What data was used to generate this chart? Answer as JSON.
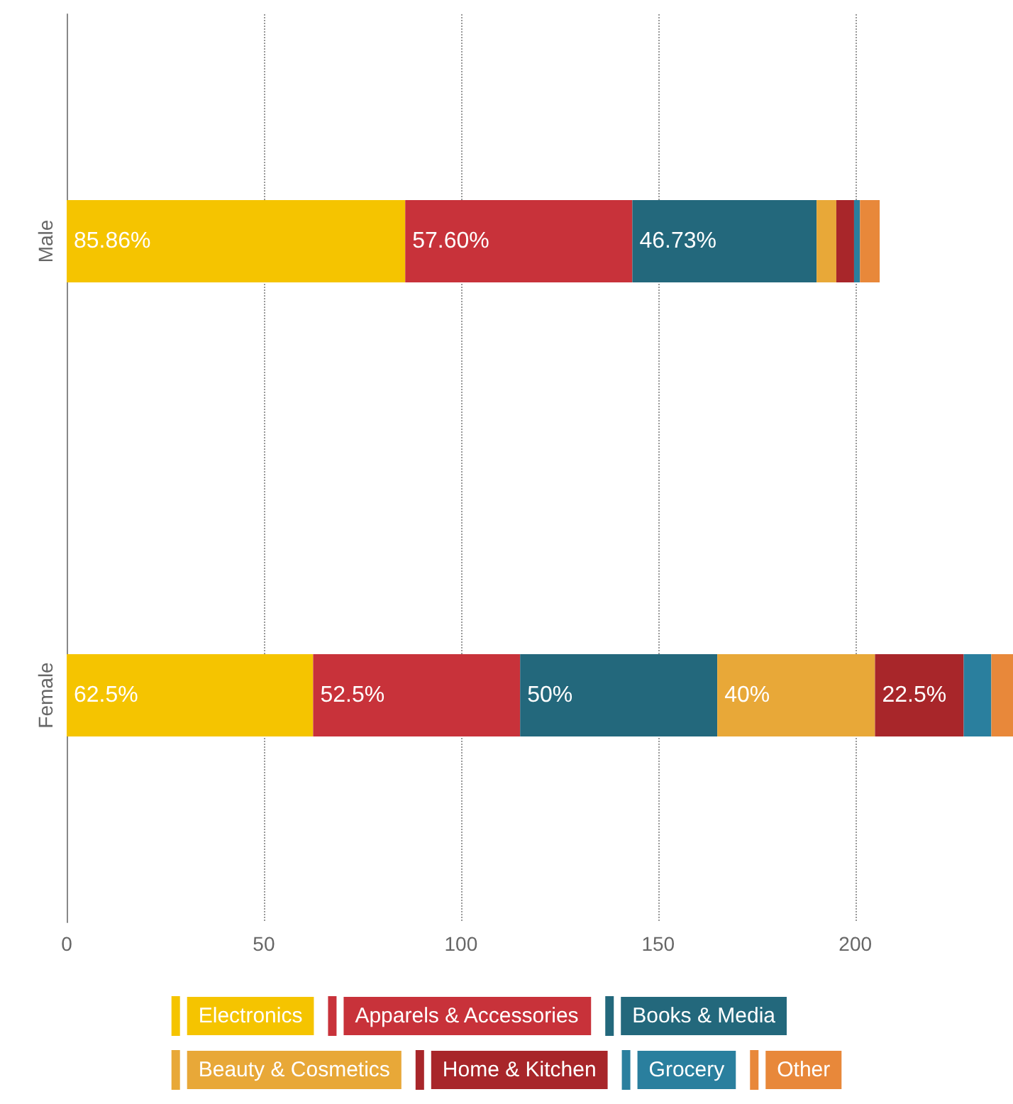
{
  "chart_data": {
    "type": "bar",
    "orientation": "horizontal",
    "stacked": true,
    "categories": [
      "Male",
      "Female"
    ],
    "series": [
      {
        "name": "Electronics",
        "color": "#f5c400",
        "values": [
          85.86,
          62.5
        ],
        "value_labels": [
          "85.86%",
          "62.5%"
        ]
      },
      {
        "name": "Apparels & Accessories",
        "color": "#c8323a",
        "values": [
          57.6,
          52.5
        ],
        "value_labels": [
          "57.60%",
          "52.5%"
        ]
      },
      {
        "name": "Books & Media",
        "color": "#23687c",
        "values": [
          46.73,
          50
        ],
        "value_labels": [
          "46.73%",
          "50%"
        ]
      },
      {
        "name": "Beauty & Cosmetics",
        "color": "#e8a838",
        "values": [
          5,
          40
        ],
        "value_labels": [
          null,
          "40%"
        ]
      },
      {
        "name": "Home & Kitchen",
        "color": "#a8262a",
        "values": [
          4.5,
          22.5
        ],
        "value_labels": [
          null,
          "22.5%"
        ]
      },
      {
        "name": "Grocery",
        "color": "#2a7f9e",
        "values": [
          1.5,
          7
        ],
        "value_labels": [
          null,
          null
        ]
      },
      {
        "name": "Other",
        "color": "#e8883a",
        "values": [
          5,
          5.5
        ],
        "value_labels": [
          null,
          null
        ]
      }
    ],
    "xlim": [
      0,
      240
    ],
    "xticks": [
      0,
      50,
      100,
      150,
      200
    ],
    "grid": "x",
    "legend": "bottom"
  }
}
